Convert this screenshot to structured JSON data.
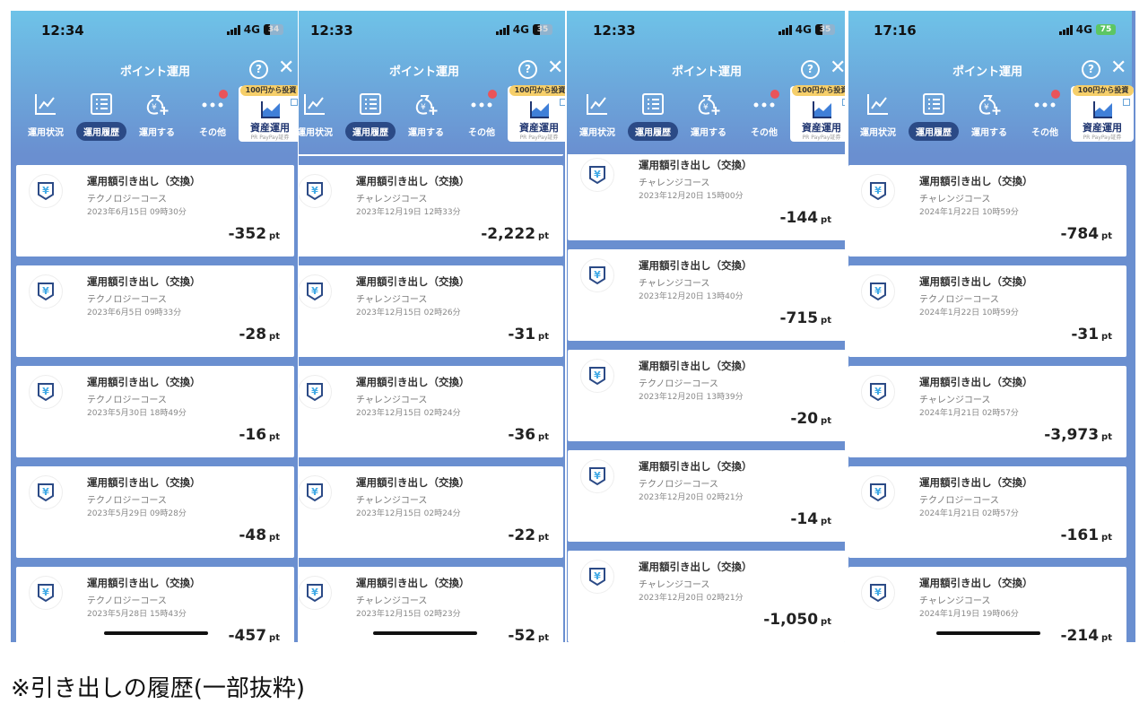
{
  "app": {
    "title": "ポイント運用",
    "help_icon": "?",
    "close_icon": "✕",
    "network": "4G",
    "nav": [
      {
        "label": "運用状況",
        "icon": "line-chart-icon"
      },
      {
        "label": "運用履歴",
        "icon": "list-icon",
        "active": true
      },
      {
        "label": "運用する",
        "icon": "money-bag-plus-icon"
      },
      {
        "label": "その他",
        "icon": "more-dots-icon"
      }
    ],
    "promo": {
      "tag": "100円から投資",
      "title": "資産運用",
      "sub": "PR PayPay証券"
    },
    "item_title": "運用額引き出し（交換）",
    "unit": "pt",
    "colors": {
      "list_bg": "#6a8fd0",
      "header_top": "#6ec3e8",
      "active_tab": "#2b4a86",
      "badge": "#e9545a"
    }
  },
  "panels": [
    {
      "time": "12:34",
      "battery": "34",
      "charging": false,
      "items": [
        {
          "course": "テクノロジーコース",
          "date": "2023年6月15日 09時30分",
          "amount": "-352"
        },
        {
          "course": "テクノロジーコース",
          "date": "2023年6月5日 09時33分",
          "amount": "-28"
        },
        {
          "course": "テクノロジーコース",
          "date": "2023年5月30日 18時49分",
          "amount": "-16"
        },
        {
          "course": "テクノロジーコース",
          "date": "2023年5月29日 09時28分",
          "amount": "-48"
        },
        {
          "course": "テクノロジーコース",
          "date": "2023年5月28日 15時43分",
          "amount": "-457"
        }
      ]
    },
    {
      "time": "12:33",
      "battery": "35",
      "charging": false,
      "items": [
        {
          "course": "",
          "date": "",
          "amount": ""
        },
        {
          "course": "チャレンジコース",
          "date": "2023年12月19日 12時33分",
          "amount": "-2,222"
        },
        {
          "course": "チャレンジコース",
          "date": "2023年12月15日 02時26分",
          "amount": "-31"
        },
        {
          "course": "チャレンジコース",
          "date": "2023年12月15日 02時24分",
          "amount": "-36"
        },
        {
          "course": "チャレンジコース",
          "date": "2023年12月15日 02時24分",
          "amount": "-22"
        },
        {
          "course": "チャレンジコース",
          "date": "2023年12月15日 02時23分",
          "amount": "-52"
        }
      ]
    },
    {
      "time": "12:33",
      "battery": "35",
      "charging": false,
      "items": [
        {
          "course": "チャレンジコース",
          "date": "2023年12月20日 15時00分",
          "amount": "-144"
        },
        {
          "course": "チャレンジコース",
          "date": "2023年12月20日 13時40分",
          "amount": "-715"
        },
        {
          "course": "テクノロジーコース",
          "date": "2023年12月20日 13時39分",
          "amount": "-20"
        },
        {
          "course": "テクノロジーコース",
          "date": "2023年12月20日 02時21分",
          "amount": "-14"
        },
        {
          "course": "チャレンジコース",
          "date": "2023年12月20日 02時21分",
          "amount": "-1,050"
        }
      ]
    },
    {
      "time": "17:16",
      "battery": "75",
      "charging": true,
      "items": [
        {
          "course": "チャレンジコース",
          "date": "2024年1月22日 10時59分",
          "amount": "-784"
        },
        {
          "course": "テクノロジーコース",
          "date": "2024年1月22日 10時59分",
          "amount": "-31"
        },
        {
          "course": "チャレンジコース",
          "date": "2024年1月21日 02時57分",
          "amount": "-3,973"
        },
        {
          "course": "テクノロジーコース",
          "date": "2024年1月21日 02時57分",
          "amount": "-161"
        },
        {
          "course": "チャレンジコース",
          "date": "2024年1月19日 19時06分",
          "amount": "-214"
        }
      ]
    }
  ],
  "caption": "※引き出しの履歴(一部抜粋)"
}
